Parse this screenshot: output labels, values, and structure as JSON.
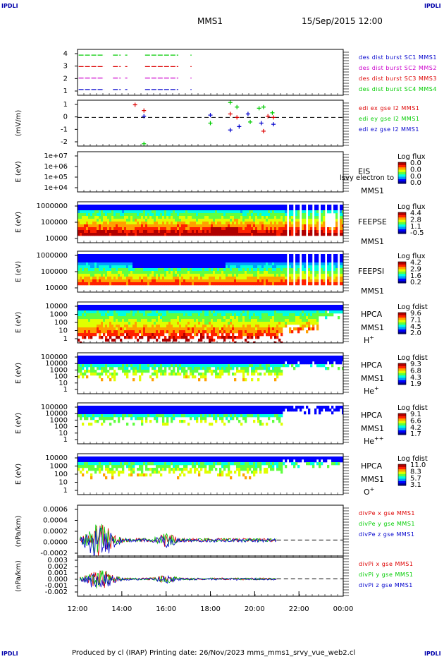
{
  "corner_label": "IPDLI",
  "header": {
    "spacecraft": "MMS1",
    "datetime": "15/Sep/2015 12:00"
  },
  "footer": {
    "text": "Produced by cl (IRAP)   Printing date: 26/Nov/2023   mms_mms1_srvy_vue_web2.cl"
  },
  "colors": {
    "red": "#dd0000",
    "green": "#00cc00",
    "blue": "#0000cc",
    "magenta": "#cc00cc",
    "spectrogram": [
      "#000090",
      "#0000ff",
      "#00a0ff",
      "#00ffe0",
      "#60ff40",
      "#e0ff00",
      "#ffa000",
      "#ff2000",
      "#b00000"
    ]
  },
  "chart_data": {
    "type": "multi-panel time series and spectrograms",
    "x_ticks": [
      "12:00",
      "14:00",
      "16:00",
      "18:00",
      "20:00",
      "22:00",
      "00:00"
    ],
    "x_range_hours": [
      12,
      24
    ],
    "panels": [
      {
        "id": "availability",
        "type": "scatter",
        "ylabel": "",
        "y_ticks": [
          "4",
          "3",
          "2",
          "1"
        ],
        "ylim": [
          0.5,
          4.5
        ],
        "legend": [
          {
            "label": "des dist burst SC1 MMS1",
            "color": "blue"
          },
          {
            "label": "des dist burst SC2 MMS2",
            "color": "magenta"
          },
          {
            "label": "des dist burst SC3 MMS3",
            "color": "red"
          },
          {
            "label": "des dist burst SC4 MMS4",
            "color": "green"
          }
        ],
        "segments": [
          {
            "level": 4,
            "color": "green",
            "x": [
              [
                12.05,
                13.2
              ],
              [
                13.6,
                13.95
              ],
              [
                14.15,
                14.25
              ],
              [
                15.05,
                16.55
              ],
              [
                17.1,
                17.15
              ]
            ]
          },
          {
            "level": 3,
            "color": "red",
            "x": [
              [
                12.05,
                13.2
              ],
              [
                13.6,
                13.95
              ],
              [
                14.15,
                14.25
              ],
              [
                15.05,
                16.55
              ],
              [
                17.1,
                17.15
              ]
            ]
          },
          {
            "level": 2,
            "color": "magenta",
            "x": [
              [
                12.05,
                13.2
              ],
              [
                13.6,
                13.95
              ],
              [
                14.15,
                14.25
              ],
              [
                15.05,
                16.55
              ],
              [
                17.1,
                17.15
              ]
            ]
          },
          {
            "level": 1,
            "color": "blue",
            "x": [
              [
                12.05,
                13.2
              ],
              [
                13.6,
                13.95
              ],
              [
                14.15,
                14.25
              ],
              [
                15.05,
                16.55
              ],
              [
                17.1,
                17.15
              ]
            ]
          }
        ]
      },
      {
        "id": "edi",
        "type": "scatter",
        "ylabel": "(mV/m)",
        "y_ticks": [
          "1",
          "0",
          "-1",
          "-2"
        ],
        "ylim": [
          -2.5,
          1.5
        ],
        "legend": [
          {
            "label": "edi ex gse l2 MMS1",
            "color": "red"
          },
          {
            "label": "edi ey gse l2 MMS1",
            "color": "green"
          },
          {
            "label": "edi ez gse l2 MMS1",
            "color": "blue"
          }
        ],
        "points": [
          {
            "x": 14.6,
            "y": 1.1,
            "color": "red"
          },
          {
            "x": 15.0,
            "y": 0.6,
            "color": "red"
          },
          {
            "x": 15.0,
            "y": 0.1,
            "color": "blue"
          },
          {
            "x": 15.0,
            "y": -2.3,
            "color": "green"
          },
          {
            "x": 18.0,
            "y": 0.2,
            "color": "blue"
          },
          {
            "x": 18.0,
            "y": -0.5,
            "color": "green"
          },
          {
            "x": 18.9,
            "y": 1.3,
            "color": "green"
          },
          {
            "x": 18.9,
            "y": 0.3,
            "color": "red"
          },
          {
            "x": 18.9,
            "y": -1.1,
            "color": "blue"
          },
          {
            "x": 19.2,
            "y": 0.9,
            "color": "green"
          },
          {
            "x": 19.2,
            "y": 0.0,
            "color": "red"
          },
          {
            "x": 19.3,
            "y": -0.8,
            "color": "blue"
          },
          {
            "x": 19.7,
            "y": 0.3,
            "color": "blue"
          },
          {
            "x": 19.8,
            "y": -0.4,
            "color": "green"
          },
          {
            "x": 20.2,
            "y": 0.8,
            "color": "green"
          },
          {
            "x": 20.3,
            "y": -0.5,
            "color": "blue"
          },
          {
            "x": 20.4,
            "y": 0.9,
            "color": "green"
          },
          {
            "x": 20.4,
            "y": -1.2,
            "color": "red"
          },
          {
            "x": 20.6,
            "y": 0.1,
            "color": "red"
          },
          {
            "x": 20.8,
            "y": 0.4,
            "color": "green"
          },
          {
            "x": 20.85,
            "y": -0.6,
            "color": "blue"
          },
          {
            "x": 20.85,
            "y": 0.0,
            "color": "red"
          }
        ]
      },
      {
        "id": "eis",
        "type": "heatmap",
        "ylabel": "E (eV)",
        "y_ticks": [
          "1e+07",
          "1e+06",
          "1e+05",
          "1e+04"
        ],
        "instrument": [
          "EIS",
          "MMS1"
        ],
        "overlay_label": "lsvy electron to",
        "colorbar": {
          "title": "Log flux",
          "ticks": [
            "0.0",
            "0.0",
            "0.0",
            "0.0"
          ]
        }
      },
      {
        "id": "feepse",
        "type": "heatmap",
        "ylabel": "E (eV)",
        "y_ticks": [
          "1000000",
          "100000",
          "10000"
        ],
        "instrument": [
          "FEEPSE",
          "MMS1"
        ],
        "colorbar": {
          "title": "Log flux",
          "ticks": [
            "4.4",
            "2.8",
            "1.1",
            "-0.5"
          ]
        }
      },
      {
        "id": "feepsi",
        "type": "heatmap",
        "ylabel": "E (eV)",
        "y_ticks": [
          "1000000",
          "100000",
          "10000"
        ],
        "instrument": [
          "FEEPSI",
          "MMS1"
        ],
        "colorbar": {
          "title": "Log flux",
          "ticks": [
            "4.2",
            "2.9",
            "1.6",
            "0.2"
          ]
        }
      },
      {
        "id": "hpca_h",
        "type": "heatmap",
        "ylabel": "E (eV)",
        "y_ticks": [
          "10000",
          "1000",
          "100",
          "10",
          "1"
        ],
        "instrument": [
          "HPCA",
          "MMS1"
        ],
        "species": "H",
        "species_charge": "+",
        "colorbar": {
          "title": "Log fdist",
          "ticks": [
            "9.6",
            "7.1",
            "4.5",
            "2.0"
          ]
        }
      },
      {
        "id": "hpca_he",
        "type": "heatmap",
        "ylabel": "E (eV)",
        "y_ticks": [
          "100000",
          "10000",
          "1000",
          "100",
          "10",
          "1"
        ],
        "instrument": [
          "HPCA",
          "MMS1"
        ],
        "species": "He",
        "species_charge": "+",
        "colorbar": {
          "title": "Log fdist",
          "ticks": [
            "9.3",
            "6.8",
            "4.3",
            "1.9"
          ]
        }
      },
      {
        "id": "hpca_hepp",
        "type": "heatmap",
        "ylabel": "E (eV)",
        "y_ticks": [
          "100000",
          "10000",
          "1000",
          "100",
          "10",
          "1"
        ],
        "instrument": [
          "HPCA",
          "MMS1"
        ],
        "species": "He",
        "species_charge": "++",
        "colorbar": {
          "title": "Log fdist",
          "ticks": [
            "9.1",
            "6.6",
            "4.2",
            "1.7"
          ]
        }
      },
      {
        "id": "hpca_o",
        "type": "heatmap",
        "ylabel": "E (eV)",
        "y_ticks": [
          "10000",
          "1000",
          "100",
          "10",
          "1"
        ],
        "instrument": [
          "HPCA",
          "MMS1"
        ],
        "species": "O",
        "species_charge": "+",
        "colorbar": {
          "title": "Log fdist",
          "ticks": [
            "11.0",
            "8.3",
            "5.7",
            "3.1"
          ]
        }
      },
      {
        "id": "divpe",
        "type": "line",
        "ylabel": "(nPa/km)",
        "y_ticks": [
          "0.0006",
          "0.0004",
          "0.0002",
          "0.0000",
          "-0.0002"
        ],
        "ylim": [
          -0.0003,
          0.0006
        ],
        "legend": [
          {
            "label": "divPe x gse MMS1",
            "color": "red"
          },
          {
            "label": "divPe y gse MMS1",
            "color": "green"
          },
          {
            "label": "divPe z gse MMS1",
            "color": "blue"
          }
        ],
        "data_end_hour": 21.0
      },
      {
        "id": "divpi",
        "type": "line",
        "ylabel": "(nPa/km)",
        "y_ticks": [
          "0.003",
          "0.002",
          "0.001",
          "0.000",
          "-0.001",
          "-0.002"
        ],
        "ylim": [
          -0.0025,
          0.0033
        ],
        "legend": [
          {
            "label": "divPi x gse MMS1",
            "color": "red"
          },
          {
            "label": "divPi y gse MMS1",
            "color": "green"
          },
          {
            "label": "divPi z gse MMS1",
            "color": "blue"
          }
        ],
        "data_end_hour": 21.0
      }
    ]
  }
}
